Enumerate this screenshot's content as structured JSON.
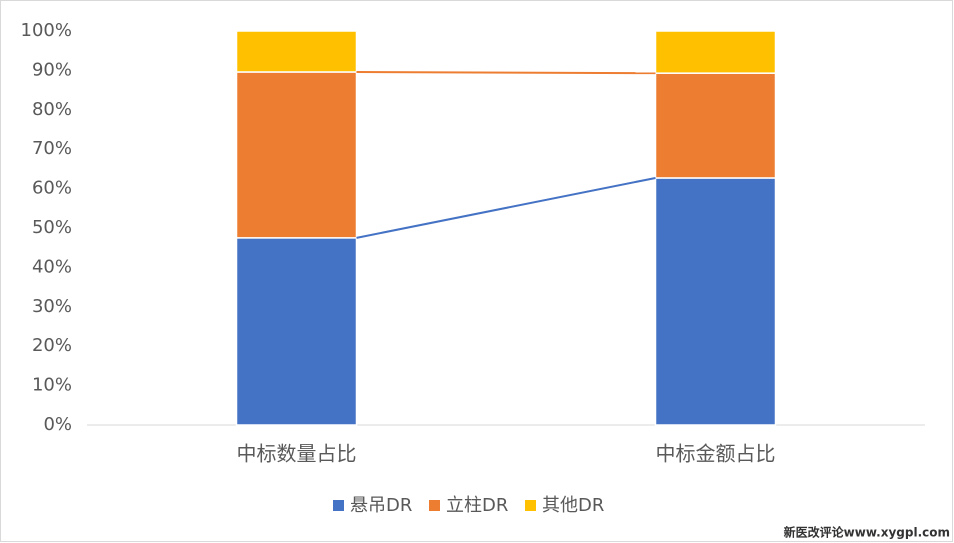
{
  "chart_data": {
    "type": "stacked_bar",
    "categories": [
      "中标数量占比",
      "中标金额占比"
    ],
    "series": [
      {
        "name": "悬吊DR",
        "color": "#4472c4",
        "values": [
          47.5,
          62.7
        ]
      },
      {
        "name": "立柱DR",
        "color": "#ed7d31",
        "values": [
          42.1,
          26.6
        ]
      },
      {
        "name": "其他DR",
        "color": "#ffc000",
        "values": [
          10.4,
          10.7
        ]
      }
    ],
    "ylim": [
      0,
      100
    ],
    "yticks": [
      {
        "value": 0,
        "label": "0%"
      },
      {
        "value": 10,
        "label": "10%"
      },
      {
        "value": 20,
        "label": "20%"
      },
      {
        "value": 30,
        "label": "30%"
      },
      {
        "value": 40,
        "label": "40%"
      },
      {
        "value": 50,
        "label": "50%"
      },
      {
        "value": 60,
        "label": "60%"
      },
      {
        "value": 70,
        "label": "70%"
      },
      {
        "value": 80,
        "label": "80%"
      },
      {
        "value": 90,
        "label": "90%"
      },
      {
        "value": 100,
        "label": "100%"
      }
    ],
    "series_lines": true,
    "legend": "bottom",
    "watermark": "新医改评论www.xygpl.com"
  }
}
